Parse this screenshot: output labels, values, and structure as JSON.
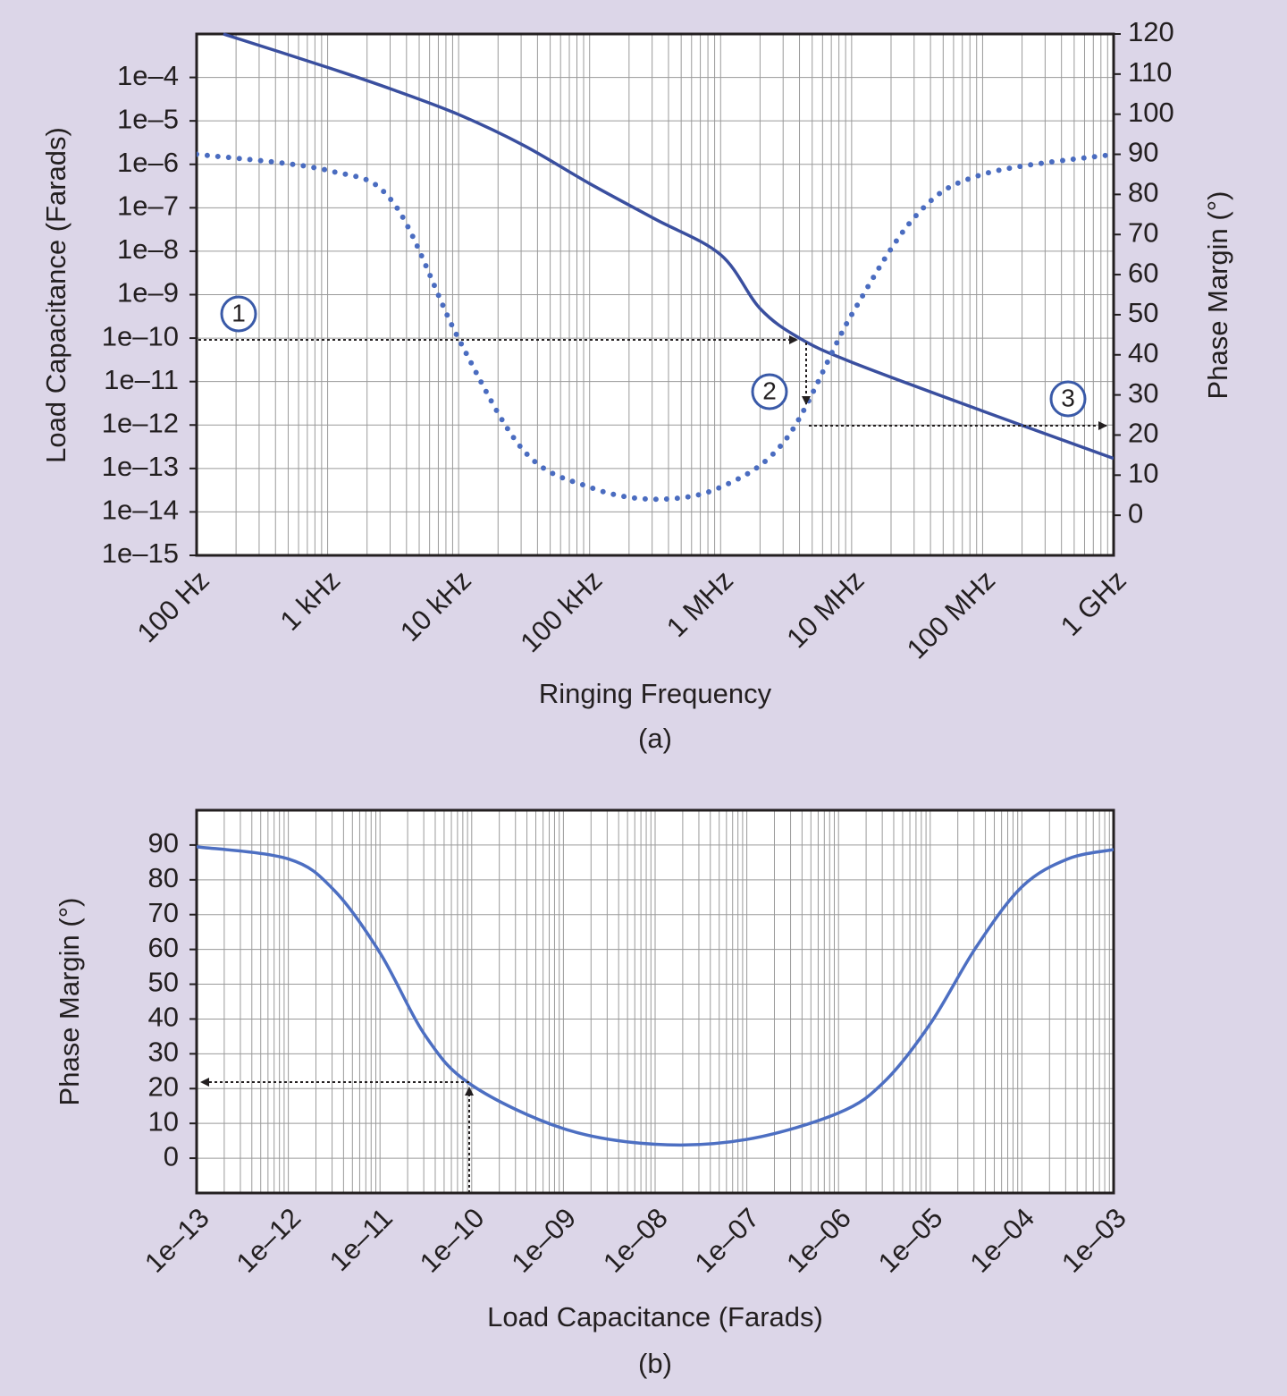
{
  "chart_data": [
    {
      "type": "line",
      "xlabel": "Ringing Frequency",
      "ylabel": "Load Capacitance (Farads)",
      "y2label": "Phase Margin (°)",
      "caption": "(a)",
      "xscale": "log",
      "yscale": "log",
      "grid": true,
      "xlim": [
        100,
        1000000000
      ],
      "xticks": [
        {
          "value": 100,
          "label": "100 Hz"
        },
        {
          "value": 1000,
          "label": "1 kHz"
        },
        {
          "value": 10000,
          "label": "10 kHz"
        },
        {
          "value": 100000,
          "label": "100 kHz"
        },
        {
          "value": 1000000,
          "label": "1 MHz"
        },
        {
          "value": 10000000,
          "label": "10 MHz"
        },
        {
          "value": 100000000,
          "label": "100 MHz"
        },
        {
          "value": 1000000000,
          "label": "1 GHz"
        }
      ],
      "ylim": [
        1e-15,
        0.001
      ],
      "yticks": [
        {
          "value": 1e-15,
          "label": "1e–15"
        },
        {
          "value": 1e-14,
          "label": "1e–14"
        },
        {
          "value": 1e-13,
          "label": "1e–13"
        },
        {
          "value": 1e-12,
          "label": "1e–12"
        },
        {
          "value": 1e-11,
          "label": "1e–11"
        },
        {
          "value": 1e-10,
          "label": "1e–10"
        },
        {
          "value": 1e-09,
          "label": "1e–9"
        },
        {
          "value": 1e-08,
          "label": "1e–8"
        },
        {
          "value": 1e-07,
          "label": "1e–7"
        },
        {
          "value": 1e-06,
          "label": "1e–6"
        },
        {
          "value": 1e-05,
          "label": "1e–5"
        },
        {
          "value": 0.0001,
          "label": "1e–4"
        }
      ],
      "y2lim": [
        -10,
        120
      ],
      "y2ticks": [
        0,
        10,
        20,
        30,
        40,
        50,
        60,
        70,
        80,
        90,
        100,
        110,
        120
      ],
      "series": [
        {
          "color": "#3a4f9f",
          "style": "solid",
          "x": [
            160,
            1000,
            3160,
            10000,
            31600,
            100000,
            316000,
            1000000,
            2000000,
            4000000,
            10000000,
            100000000,
            1000000000
          ],
          "values": [
            0.001,
            0.00017,
            5.2e-05,
            1.4e-05,
            2.7e-06,
            3.6e-07,
            5.5e-08,
            8.3e-09,
            4.8e-10,
            1e-10,
            2.8e-11,
            2.1e-12,
            1.7e-13
          ]
        },
        {
          "color": "#4a6cc0",
          "style": "dotted",
          "axis": "y2",
          "x": [
            100,
            1000,
            3160,
            10000,
            31600,
            100000,
            316000,
            1000000,
            3160000,
            10000000,
            31600000,
            100000000,
            1000000000
          ],
          "values": [
            90,
            86,
            78,
            44,
            16,
            7,
            4,
            7,
            19,
            50,
            75,
            85,
            90
          ]
        }
      ],
      "annotations": [
        "1",
        "2",
        "3"
      ]
    },
    {
      "type": "line",
      "xlabel": "Load Capacitance (Farads)",
      "ylabel": "Phase Margin (°)",
      "caption": "(b)",
      "xscale": "log",
      "grid": true,
      "xlim": [
        1e-13,
        0.001
      ],
      "xticks": [
        {
          "value": 1e-13,
          "label": "1e–13"
        },
        {
          "value": 1e-12,
          "label": "1e–12"
        },
        {
          "value": 1e-11,
          "label": "1e–11"
        },
        {
          "value": 1e-10,
          "label": "1e–10"
        },
        {
          "value": 1e-09,
          "label": "1e–09"
        },
        {
          "value": 1e-08,
          "label": "1e–08"
        },
        {
          "value": 1e-07,
          "label": "1e–07"
        },
        {
          "value": 1e-06,
          "label": "1e–06"
        },
        {
          "value": 1e-05,
          "label": "1e–05"
        },
        {
          "value": 0.0001,
          "label": "1e–04"
        },
        {
          "value": 0.001,
          "label": "1e–03"
        }
      ],
      "ylim": [
        -10,
        100
      ],
      "yticks": [
        0,
        10,
        20,
        30,
        40,
        50,
        60,
        70,
        80,
        90
      ],
      "series": [
        {
          "color": "#4d6fc2",
          "style": "solid",
          "x": [
            1e-13,
            1e-12,
            3.16e-12,
            1e-11,
            3.16e-11,
            1e-10,
            1e-09,
            1e-08,
            1e-07,
            1e-06,
            3.16e-06,
            1e-05,
            3.16e-05,
            0.0001,
            0.000316,
            0.001
          ],
          "values": [
            89.5,
            86,
            77,
            59,
            35,
            21,
            8.5,
            4,
            5.4,
            13,
            22,
            38.6,
            60.6,
            78,
            86,
            88.7
          ]
        }
      ]
    }
  ]
}
